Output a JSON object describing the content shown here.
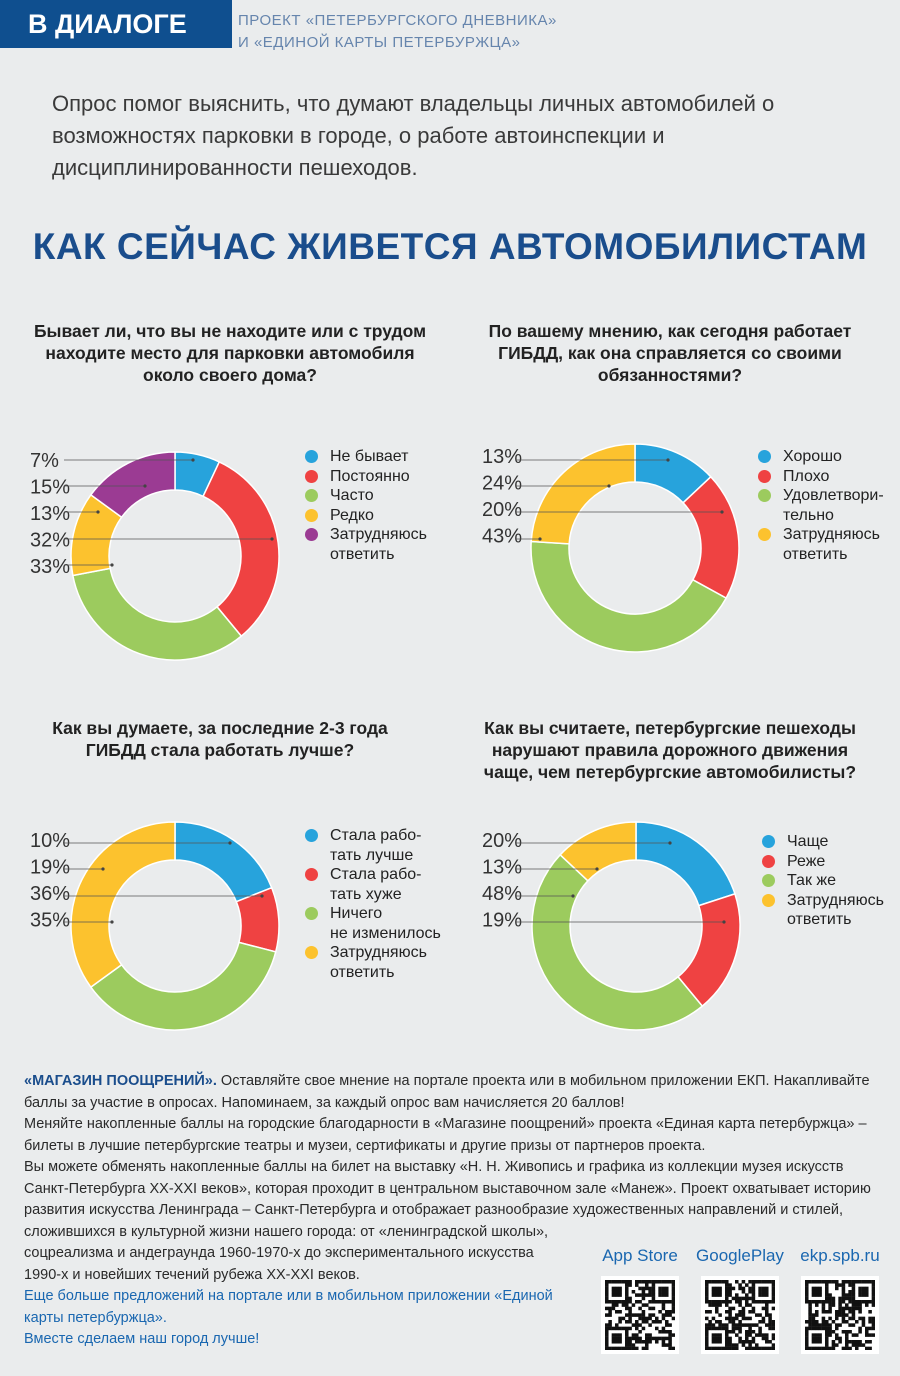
{
  "header": {
    "badge": "В ДИАЛОГЕ",
    "project_line1": "ПРОЕКТ «ПЕТЕРБУРГСКОГО ДНЕВНИКА»",
    "project_line2": "И «ЕДИНОЙ КАРТЫ ПЕТЕРБУРЖЦА»"
  },
  "intro": "Опрос помог выяснить, что думают владельцы личных автомобилей о возможностях парковки в городе, о работе автоинспекции и дисциплинированности пешеходов.",
  "main_title": "КАК СЕЙЧАС ЖИВЕТСЯ АВТОМОБИЛИСТАМ",
  "colors": {
    "blue": "#27a3dc",
    "red": "#ef4242",
    "green": "#9ccb5e",
    "yellow": "#fcc22e",
    "purple": "#9b3b93"
  },
  "chart_data": [
    {
      "type": "pie",
      "title": "Бывает ли, что вы не находите или с трудом находите место для парковки автомобиля около своего дома?",
      "legend": [
        "Не бывает",
        "Постоянно",
        "Часто",
        "Редко",
        "Затрудняюсь\nответить"
      ],
      "values": [
        7,
        32,
        33,
        13,
        15
      ],
      "colors": [
        "#27a3dc",
        "#ef4242",
        "#9ccb5e",
        "#fcc22e",
        "#9b3b93"
      ],
      "labels": [
        "7%",
        "15%",
        "13%",
        "32%",
        "33%"
      ]
    },
    {
      "type": "pie",
      "title": "По вашему мнению, как сегодня работает ГИБДД, как она справляется со своими обязанностями?",
      "legend": [
        "Хорошо",
        "Плохо",
        "Удовлетвори-\nтельно",
        "Затрудняюсь\nответить"
      ],
      "values": [
        13,
        20,
        43,
        24
      ],
      "colors": [
        "#27a3dc",
        "#ef4242",
        "#9ccb5e",
        "#fcc22e"
      ],
      "labels": [
        "13%",
        "24%",
        "20%",
        "43%"
      ]
    },
    {
      "type": "pie",
      "title": "Как вы думаете, за последние 2-3 года ГИБДД стала работать лучше?",
      "legend": [
        "Стала рабо-\nтать лучше",
        "Стала рабо-\nтать хуже",
        "Ничего\nне изменилось",
        "Затрудняюсь\nответить"
      ],
      "values": [
        19,
        10,
        36,
        35
      ],
      "colors": [
        "#27a3dc",
        "#ef4242",
        "#9ccb5e",
        "#fcc22e"
      ],
      "labels": [
        "10%",
        "19%",
        "36%",
        "35%"
      ]
    },
    {
      "type": "pie",
      "title": "Как вы считаете, петербургские пешеходы нарушают правила дорожного движения чаще, чем петербургские автомобилисты?",
      "legend": [
        "Чаще",
        "Реже",
        "Так же",
        "Затрудняюсь\nответить"
      ],
      "values": [
        20,
        19,
        48,
        13
      ],
      "colors": [
        "#27a3dc",
        "#ef4242",
        "#9ccb5e",
        "#fcc22e"
      ],
      "labels": [
        "20%",
        "13%",
        "48%",
        "19%"
      ]
    }
  ],
  "footer": {
    "highlight": "«МАГАЗИН ПООЩРЕНИЙ».",
    "p1": " Оставляйте свое мнение на портале проекта или в мобильном приложении ЕКП. Накапливайте баллы за участие в опросах. Напоминаем, за каждый опрос вам начисляется 20 баллов!",
    "p2": "Меняйте накопленные баллы на городские благодарности в «Магазине поощрений» проекта «Единая карта петербуржца» – билеты в лучшие петербургские театры и музеи, сертификаты и другие призы от партнеров проекта.",
    "p3a": "Вы можете обменять накопленные баллы на билет на выставку «Н. Н. Живопись и графика из коллекции музея искусств Санкт-Петербурга XX-XXI веков», которая проходит в центральном выставочном зале «Манеж». Проект охватывает историю развития искусства Ленинграда – Санкт-Петербурга и отображает разнообразие художественных направлений и стилей, сложившихся в культурной жизни нашего города: от «ленинградской школы»,",
    "p3b": "соцреализма и андеграунда 1960-1970-х до экспериментального искусства 1990-х и новейших течений рубежа XX-XXI веков.",
    "p4": "Еще больше предложений на портале или в мобильном приложении «Единой карты петербуржца».",
    "p5": "Вместе сделаем наш город лучше!"
  },
  "apps": [
    {
      "label": "App Store"
    },
    {
      "label": "GooglePlay"
    },
    {
      "label": "ekp.spb.ru"
    }
  ]
}
